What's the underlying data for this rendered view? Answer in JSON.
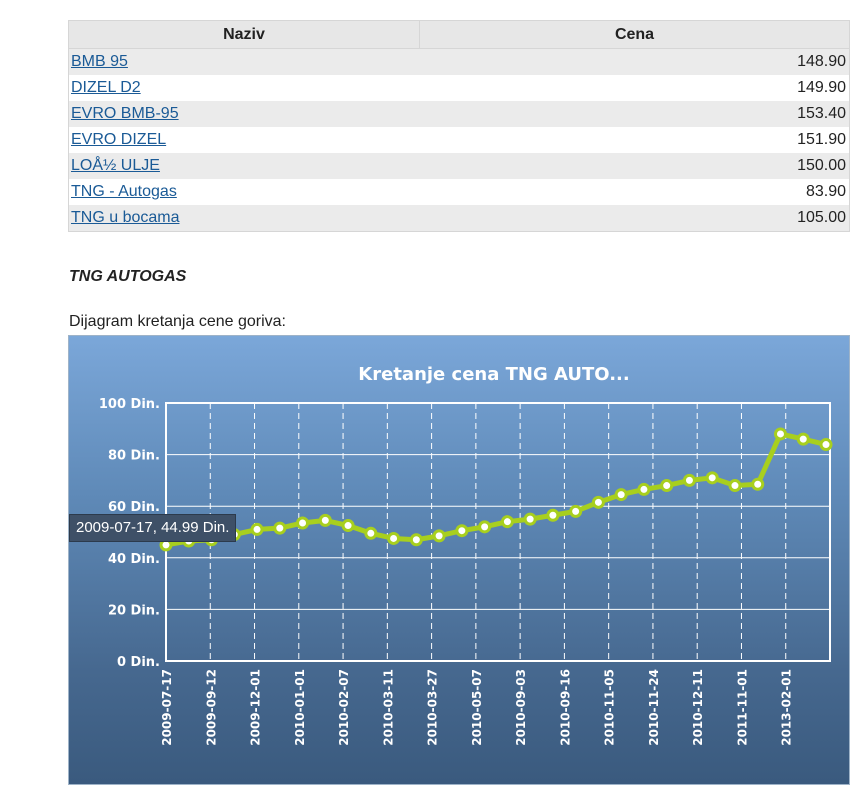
{
  "table": {
    "headers": {
      "name": "Naziv",
      "price": "Cena"
    },
    "rows": [
      {
        "name": "BMB 95",
        "price": "148.90"
      },
      {
        "name": "DIZEL D2",
        "price": "149.90"
      },
      {
        "name": "EVRO BMB-95",
        "price": "153.40"
      },
      {
        "name": "EVRO DIZEL",
        "price": "151.90"
      },
      {
        "name": "LOÅ½ ULJE",
        "price": "150.00"
      },
      {
        "name": "TNG - Autogas",
        "price": "83.90"
      },
      {
        "name": "TNG u bocama",
        "price": "105.00"
      }
    ]
  },
  "section_title": "TNG AUTOGAS",
  "chart_caption": "Dijagram kretanja cene goriva:",
  "tooltip": "2009-07-17, 44.99 Din.",
  "colors": {
    "line": "#a8cf1e",
    "marker_fill": "#ffffff",
    "grid": "#ffffff",
    "bg_top": "#7ba7d9",
    "bg_bottom": "#3a5a7e"
  },
  "chart_data": {
    "type": "line",
    "title": "Kretanje cena TNG AUTO...",
    "y_tick_labels": [
      "0 Din.",
      "20 Din.",
      "40 Din.",
      "60 Din.",
      "80 Din.",
      "100 Din."
    ],
    "ylim": [
      0,
      100
    ],
    "grid": true,
    "x_tick_labels": [
      "2009-07-17",
      "2009-09-12",
      "2009-12-01",
      "2010-01-01",
      "2010-02-07",
      "2010-03-11",
      "2010-03-27",
      "2010-05-07",
      "2010-09-03",
      "2010-09-16",
      "2010-11-05",
      "2010-11-24",
      "2010-12-11",
      "2011-11-01",
      "2013-02-01"
    ],
    "values": [
      44.99,
      46.5,
      47.0,
      49.0,
      51.0,
      51.5,
      53.5,
      54.5,
      52.5,
      49.5,
      47.5,
      47.0,
      48.5,
      50.5,
      52.0,
      54.0,
      55.0,
      56.5,
      58.0,
      61.5,
      64.5,
      66.5,
      68.0,
      70.0,
      71.0,
      68.0,
      68.5,
      88.0,
      86.0,
      83.9
    ]
  }
}
